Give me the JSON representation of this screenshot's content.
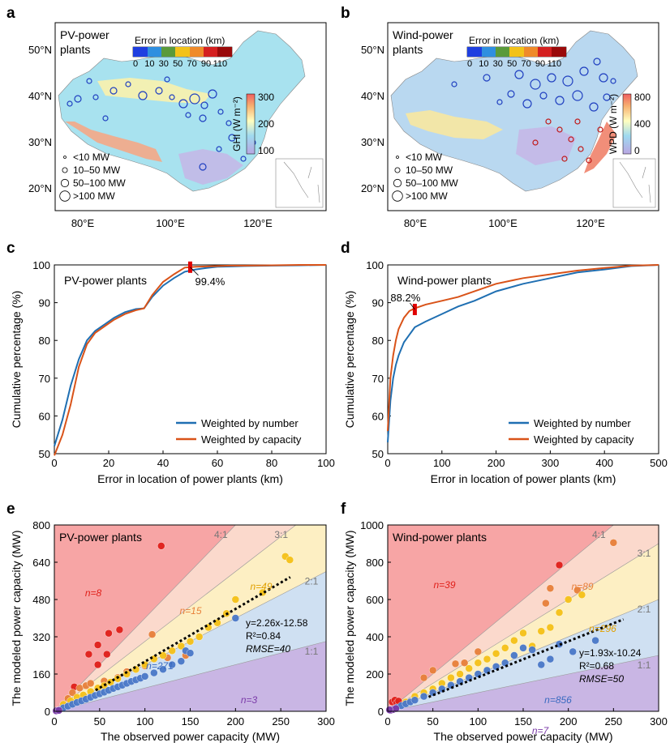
{
  "panels": {
    "a": {
      "letter": "a",
      "title_line1": "PV-power",
      "title_line2": "plants",
      "err_legend_title": "Error in location (km)",
      "err_ticks": [
        "0",
        "10",
        "30",
        "50",
        "70",
        "90",
        "110"
      ],
      "cbar_label": "GHI (W m⁻²)",
      "cbar_ticks": [
        "300",
        "200",
        "100"
      ],
      "size_legend": [
        "<10 MW",
        "10–50 MW",
        "50–100 MW",
        ">100 MW"
      ],
      "lat_labels": [
        "50°N",
        "40°N",
        "30°N",
        "20°N"
      ],
      "lon_labels": [
        "80°E",
        "100°E",
        "120°E"
      ]
    },
    "b": {
      "letter": "b",
      "title_line1": "Wind-power",
      "title_line2": "plants",
      "err_legend_title": "Error in location (km)",
      "err_ticks": [
        "0",
        "10",
        "30",
        "50",
        "70",
        "90",
        "110"
      ],
      "cbar_label": "WPD (W m⁻²)",
      "cbar_ticks": [
        "800",
        "400",
        "0"
      ],
      "size_legend": [
        "<10 MW",
        "10–50 MW",
        "50–100 MW",
        ">100 MW"
      ],
      "lat_labels": [
        "50°N",
        "40°N",
        "30°N",
        "20°N"
      ],
      "lon_labels": [
        "80°E",
        "100°E",
        "120°E"
      ]
    }
  },
  "colors": {
    "blue": "#1f6fb2",
    "orange": "#d95319",
    "purple": "#c9b6e4",
    "lightblue": "#cfe0f2",
    "yellow": "#fdefc3",
    "salmon": "#fbd9cc",
    "red": "#f7a5a5"
  },
  "chart_data": [
    {
      "id": "c",
      "letter": "c",
      "type": "line",
      "title": "PV-power plants",
      "xlabel": "Error in location of power plants (km)",
      "ylabel": "Cumulative percentage (%)",
      "xlim": [
        0,
        100
      ],
      "ylim": [
        50,
        100
      ],
      "xticks": [
        0,
        20,
        40,
        60,
        80,
        100
      ],
      "yticks": [
        50,
        60,
        70,
        80,
        90,
        100
      ],
      "annotation": {
        "text": "99.4%",
        "x": 50,
        "y": 99.4
      },
      "series": [
        {
          "name": "Weighted by number",
          "color": "#1f6fb2",
          "x": [
            0,
            3,
            6,
            9,
            12,
            15,
            18,
            22,
            26,
            30,
            33,
            36,
            40,
            44,
            48,
            52,
            56,
            60,
            65,
            70,
            80,
            90,
            100
          ],
          "y": [
            52,
            59,
            68,
            75,
            80,
            82.5,
            84,
            86,
            87.5,
            88.3,
            88.5,
            91.5,
            94.5,
            96.5,
            98.2,
            98.8,
            99.2,
            99.5,
            99.6,
            99.7,
            99.8,
            99.9,
            100
          ]
        },
        {
          "name": "Weighted by capacity",
          "color": "#d95319",
          "x": [
            0,
            3,
            6,
            9,
            12,
            15,
            18,
            22,
            26,
            30,
            33,
            36,
            40,
            44,
            48,
            52,
            56,
            60,
            65,
            70,
            80,
            90,
            100
          ],
          "y": [
            49.5,
            55,
            63,
            73,
            79,
            82,
            83.5,
            85.5,
            87,
            88,
            88.5,
            92,
            95.5,
            97.5,
            99.3,
            99.5,
            99.6,
            99.7,
            99.8,
            99.8,
            99.9,
            100,
            100
          ]
        }
      ],
      "legend": "bottom-right"
    },
    {
      "id": "d",
      "letter": "d",
      "type": "line",
      "title": "Wind-power plants",
      "xlabel": "Error in location of power plants (km)",
      "ylabel": "Cumulative percentage (%)",
      "xlim": [
        0,
        500
      ],
      "ylim": [
        50,
        100
      ],
      "xticks": [
        0,
        100,
        200,
        300,
        400,
        500
      ],
      "yticks": [
        50,
        60,
        70,
        80,
        90,
        100
      ],
      "annotation": {
        "text": "88.2%",
        "x": 50,
        "y": 88.2
      },
      "series": [
        {
          "name": "Weighted by number",
          "color": "#1f6fb2",
          "x": [
            0,
            5,
            10,
            15,
            20,
            30,
            40,
            50,
            70,
            100,
            130,
            160,
            200,
            250,
            300,
            350,
            400,
            450,
            500
          ],
          "y": [
            53,
            64,
            70,
            73.5,
            76,
            79.5,
            81.5,
            83.5,
            85,
            87,
            89,
            90.5,
            93,
            95,
            96.5,
            98,
            98.8,
            99.7,
            100
          ]
        },
        {
          "name": "Weighted by capacity",
          "color": "#d95319",
          "x": [
            0,
            5,
            10,
            15,
            20,
            30,
            40,
            50,
            70,
            100,
            130,
            160,
            200,
            250,
            300,
            350,
            400,
            450,
            500
          ],
          "y": [
            56,
            70,
            76,
            80,
            83,
            86,
            87.8,
            88.5,
            89.5,
            90.5,
            91.5,
            93,
            95,
            96.5,
            97.5,
            98.5,
            99.2,
            99.8,
            100
          ]
        }
      ],
      "legend": "bottom-right"
    },
    {
      "id": "e",
      "letter": "e",
      "type": "scatter",
      "title": "PV-power plants",
      "xlabel": "The observed power capacity (MW)",
      "ylabel": "The modeled power capacity (MW)",
      "xlim": [
        0,
        300
      ],
      "ylim": [
        0,
        800
      ],
      "xticks": [
        0,
        50,
        100,
        150,
        200,
        250,
        300
      ],
      "yticks": [
        0,
        160,
        320,
        480,
        640,
        800
      ],
      "ratio_labels": [
        "4:1",
        "3:1",
        "2:1",
        "1:1"
      ],
      "counts": [
        "n=8",
        "n=15",
        "n=49",
        "n=271",
        "n=3"
      ],
      "fit": {
        "slope": 2.26,
        "intercept": -12.58,
        "eq": "y=2.26x-12.58",
        "r2": "R²=0.84",
        "rmse": "RMSE=40"
      },
      "points": {
        "red": [
          [
            22,
            105
          ],
          [
            38,
            245
          ],
          [
            48,
            285
          ],
          [
            48,
            200
          ],
          [
            58,
            245
          ],
          [
            60,
            335
          ],
          [
            72,
            350
          ],
          [
            118,
            710
          ]
        ],
        "orange": [
          [
            15,
            55
          ],
          [
            20,
            80
          ],
          [
            28,
            100
          ],
          [
            35,
            110
          ],
          [
            40,
            120
          ],
          [
            55,
            130
          ],
          [
            70,
            145
          ],
          [
            80,
            170
          ],
          [
            100,
            195
          ],
          [
            108,
            330
          ],
          [
            125,
            230
          ],
          [
            145,
            240
          ]
        ],
        "yellow": [
          [
            10,
            30
          ],
          [
            18,
            45
          ],
          [
            25,
            60
          ],
          [
            32,
            70
          ],
          [
            40,
            85
          ],
          [
            48,
            100
          ],
          [
            55,
            110
          ],
          [
            62,
            125
          ],
          [
            70,
            140
          ],
          [
            80,
            160
          ],
          [
            90,
            180
          ],
          [
            100,
            200
          ],
          [
            110,
            225
          ],
          [
            120,
            240
          ],
          [
            130,
            260
          ],
          [
            140,
            280
          ],
          [
            150,
            300
          ],
          [
            160,
            320
          ],
          [
            170,
            360
          ],
          [
            180,
            380
          ],
          [
            190,
            420
          ],
          [
            200,
            480
          ],
          [
            230,
            510
          ],
          [
            255,
            665
          ],
          [
            260,
            650
          ]
        ],
        "blue": [
          [
            5,
            5
          ],
          [
            10,
            15
          ],
          [
            15,
            22
          ],
          [
            20,
            30
          ],
          [
            25,
            38
          ],
          [
            30,
            45
          ],
          [
            35,
            52
          ],
          [
            40,
            60
          ],
          [
            45,
            68
          ],
          [
            50,
            75
          ],
          [
            55,
            82
          ],
          [
            60,
            90
          ],
          [
            65,
            98
          ],
          [
            70,
            105
          ],
          [
            75,
            112
          ],
          [
            80,
            120
          ],
          [
            85,
            128
          ],
          [
            90,
            135
          ],
          [
            95,
            142
          ],
          [
            100,
            150
          ],
          [
            110,
            165
          ],
          [
            120,
            180
          ],
          [
            130,
            200
          ],
          [
            140,
            215
          ],
          [
            145,
            260
          ],
          [
            150,
            250
          ],
          [
            200,
            400
          ]
        ],
        "purple": [
          [
            2,
            2
          ],
          [
            5,
            4
          ]
        ]
      }
    },
    {
      "id": "f",
      "letter": "f",
      "type": "scatter",
      "title": "Wind-power plants",
      "xlabel": "The observed power capacity (MW)",
      "ylabel": "The modeled power capacity (MW)",
      "xlim": [
        0,
        300
      ],
      "ylim": [
        0,
        1000
      ],
      "xticks": [
        0,
        50,
        100,
        150,
        200,
        250,
        300
      ],
      "yticks": [
        0,
        200,
        400,
        600,
        800,
        1000
      ],
      "ratio_labels": [
        "4:1",
        "3:1",
        "2:1",
        "1:1"
      ],
      "counts": [
        "n=39",
        "n=89",
        "n=296",
        "n=856",
        "n=7"
      ],
      "fit": {
        "slope": 1.93,
        "intercept": -10.24,
        "eq": "y=1.93x-10.24",
        "r2": "R²=0.68",
        "rmse": "RMSE=50"
      },
      "points": {
        "red": [
          [
            5,
            50
          ],
          [
            8,
            60
          ],
          [
            10,
            45
          ],
          [
            12,
            55
          ],
          [
            190,
            785
          ]
        ],
        "orange": [
          [
            40,
            180
          ],
          [
            50,
            220
          ],
          [
            75,
            255
          ],
          [
            85,
            260
          ],
          [
            100,
            320
          ],
          [
            175,
            580
          ],
          [
            180,
            660
          ],
          [
            210,
            650
          ],
          [
            250,
            905
          ]
        ],
        "yellow": [
          [
            20,
            50
          ],
          [
            30,
            80
          ],
          [
            40,
            100
          ],
          [
            50,
            120
          ],
          [
            60,
            150
          ],
          [
            70,
            180
          ],
          [
            80,
            200
          ],
          [
            90,
            230
          ],
          [
            100,
            260
          ],
          [
            110,
            280
          ],
          [
            120,
            310
          ],
          [
            130,
            340
          ],
          [
            140,
            380
          ],
          [
            150,
            420
          ],
          [
            160,
            350
          ],
          [
            170,
            430
          ],
          [
            180,
            450
          ],
          [
            190,
            530
          ],
          [
            200,
            600
          ],
          [
            215,
            625
          ]
        ],
        "blue": [
          [
            5,
            10
          ],
          [
            10,
            20
          ],
          [
            15,
            30
          ],
          [
            20,
            40
          ],
          [
            25,
            50
          ],
          [
            30,
            60
          ],
          [
            40,
            80
          ],
          [
            50,
            100
          ],
          [
            60,
            120
          ],
          [
            70,
            140
          ],
          [
            80,
            160
          ],
          [
            90,
            180
          ],
          [
            100,
            200
          ],
          [
            110,
            220
          ],
          [
            120,
            240
          ],
          [
            130,
            260
          ],
          [
            140,
            300
          ],
          [
            150,
            340
          ],
          [
            160,
            330
          ],
          [
            170,
            250
          ],
          [
            180,
            280
          ],
          [
            190,
            360
          ],
          [
            205,
            320
          ],
          [
            230,
            380
          ]
        ],
        "purple": [
          [
            3,
            5
          ],
          [
            6,
            10
          ],
          [
            9,
            15
          ],
          [
            2,
            8
          ]
        ]
      }
    }
  ]
}
